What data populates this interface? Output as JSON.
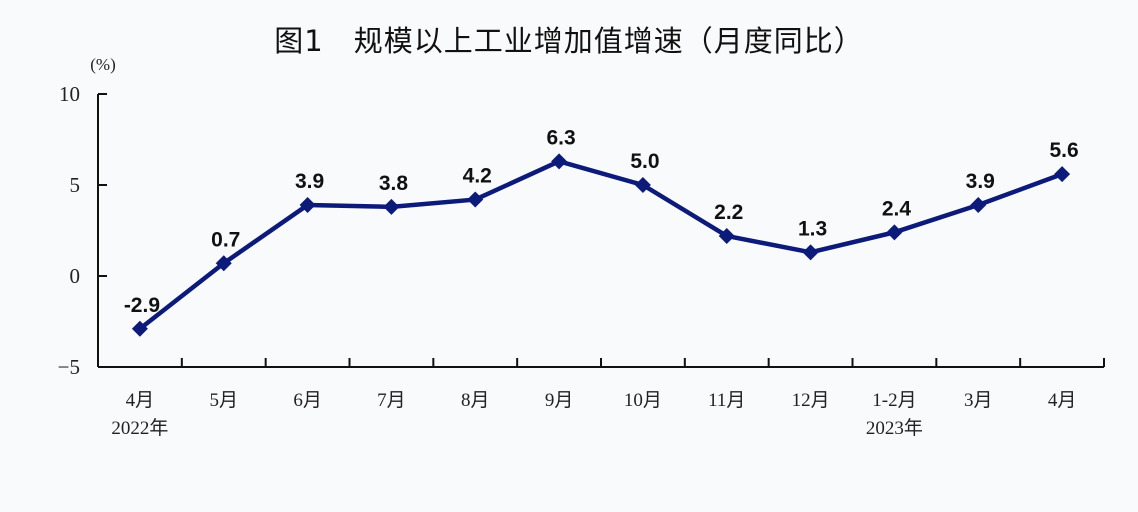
{
  "chart_data": {
    "type": "line",
    "title_prefix": "图1",
    "title": "规模以上工业增加值增速（月度同比）",
    "ylabel": "(%)",
    "xlabel": "",
    "ylim": [
      -5,
      10
    ],
    "yticks": [
      "10",
      "5",
      "0",
      "−5"
    ],
    "ytick_values": [
      10,
      5,
      0,
      -5
    ],
    "categories": [
      "4月",
      "5月",
      "6月",
      "7月",
      "8月",
      "9月",
      "10月",
      "11月",
      "12月",
      "1-2月",
      "3月",
      "4月"
    ],
    "year_labels": [
      {
        "text": "2022年",
        "category_index": 0
      },
      {
        "text": "2023年",
        "category_index": 9
      }
    ],
    "series": [
      {
        "name": "规模以上工业增加值增速",
        "values": [
          -2.9,
          0.7,
          3.9,
          3.8,
          4.2,
          6.3,
          5.0,
          2.2,
          1.3,
          2.4,
          3.9,
          5.6
        ],
        "labels": [
          "-2.9",
          "0.7",
          "3.9",
          "3.8",
          "4.2",
          "6.3",
          "5.0",
          "2.2",
          "1.3",
          "2.4",
          "3.9",
          "5.6"
        ],
        "color": "#0c1a7a",
        "marker": "diamond"
      }
    ],
    "grid": false,
    "legend": "none"
  },
  "colors": {
    "line": "#0c1a7a",
    "axis": "#111111",
    "background": "#f9fafc"
  }
}
